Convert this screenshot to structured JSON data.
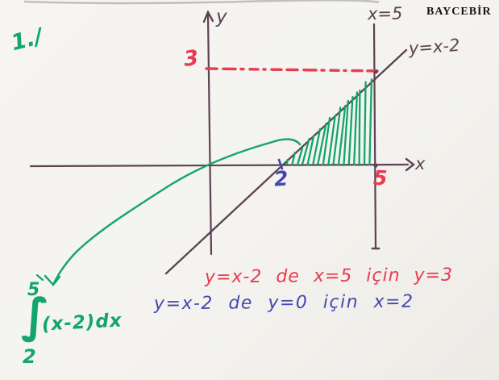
{
  "page": {
    "brand": "BAYCEBİR",
    "question_number": "1./"
  },
  "figure": {
    "y_axis_label": "y",
    "x_axis_label": "x",
    "vertical_line_label": "x=5",
    "line_label": "y=x-2",
    "y_value_label": "3",
    "x_lower_label": "2",
    "x_upper_label": "5",
    "colors": {
      "ink": "#5d4154",
      "red": "#e93a50",
      "blue": "#4447b0",
      "green": "#13a56b",
      "black": "#171310"
    }
  },
  "notes": {
    "red_note": "y=x-2 de x=5 için y=3",
    "blue_note": "y=x-2 de y=0 için x=2"
  },
  "integral": {
    "upper_limit": "5",
    "sign": "∫",
    "expression": "(x-2)dx",
    "lower_limit": "2"
  }
}
